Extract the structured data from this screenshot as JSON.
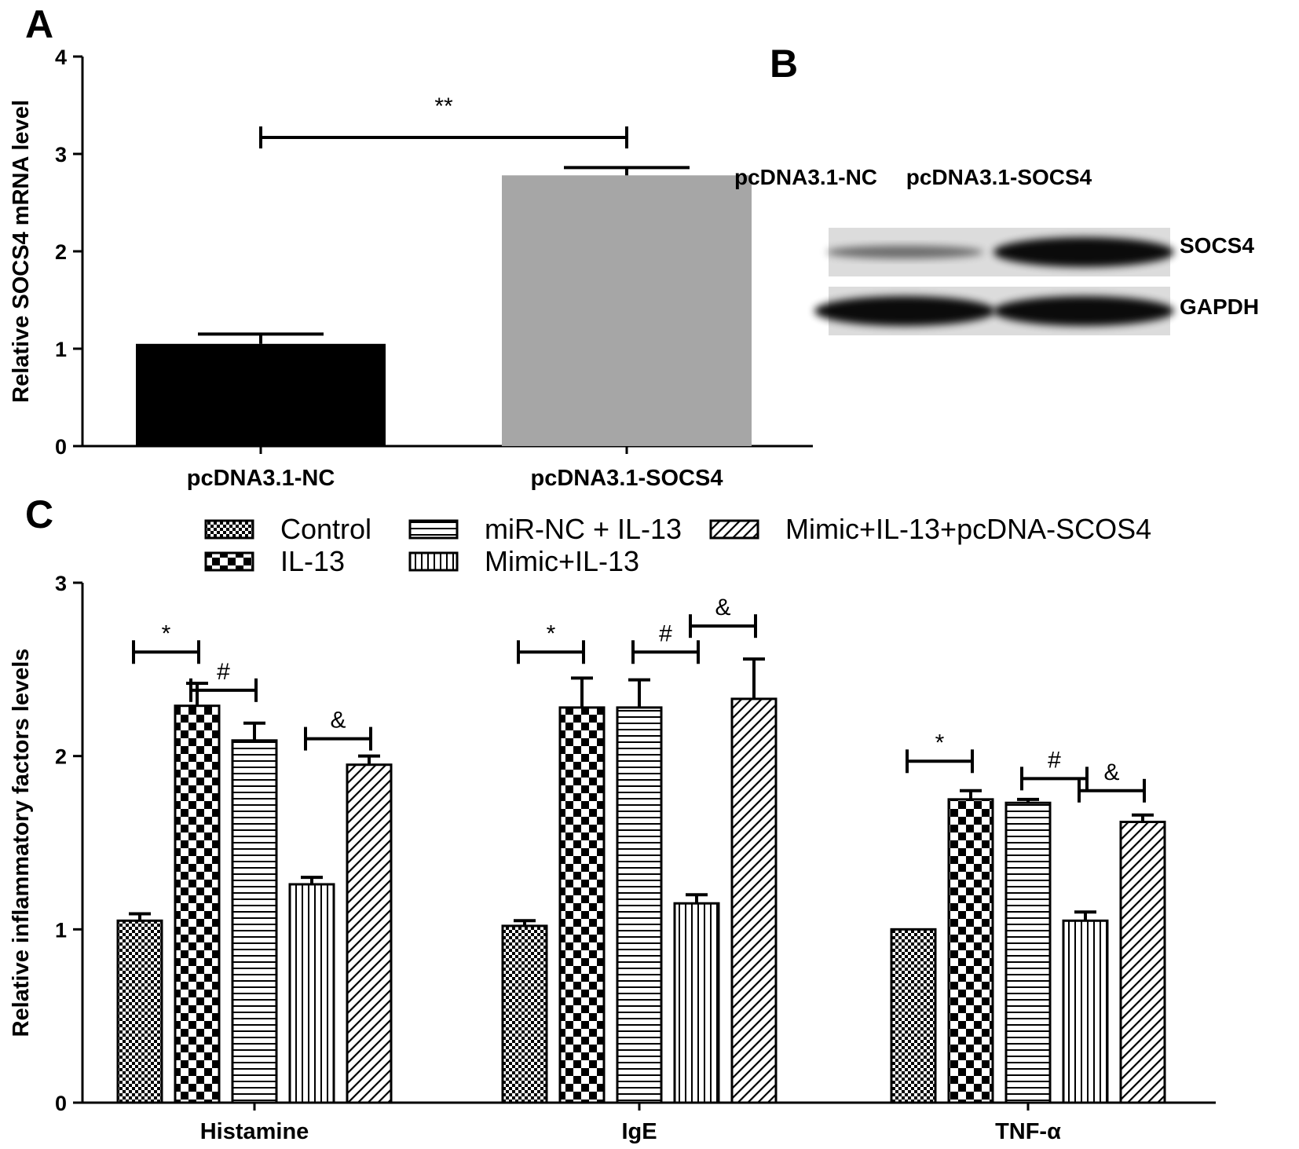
{
  "panels": {
    "a": "A",
    "b": "B",
    "c": "C"
  },
  "chart_data": [
    {
      "panel": "A",
      "type": "bar",
      "ylabel": "Relative SOCS4 mRNA level",
      "xlabel": "",
      "ylim": [
        0,
        4
      ],
      "yticks": [
        0,
        1,
        2,
        3,
        4
      ],
      "categories": [
        "pcDNA3.1-NC",
        "pcDNA3.1-SOCS4"
      ],
      "values": [
        1.05,
        2.78
      ],
      "errors": [
        0.1,
        0.08
      ],
      "colors": [
        "#000000",
        "#a6a6a6"
      ],
      "significance": [
        {
          "from": 0,
          "to": 1,
          "label": "**"
        }
      ]
    },
    {
      "panel": "C",
      "type": "bar",
      "ylabel": "Relative inflammatory factors levels",
      "xlabel": "",
      "ylim": [
        0,
        3
      ],
      "yticks": [
        0,
        1,
        2,
        3
      ],
      "categories": [
        "Histamine",
        "IgE",
        "TNF-α"
      ],
      "series": [
        {
          "name": "Control",
          "pattern": "fine-check",
          "values": [
            1.05,
            1.02,
            1.0
          ],
          "errors": [
            0.04,
            0.03,
            0.0
          ]
        },
        {
          "name": "IL-13",
          "pattern": "checker",
          "values": [
            2.29,
            2.28,
            1.75
          ],
          "errors": [
            0.13,
            0.17,
            0.05
          ]
        },
        {
          "name": "miR-NC + IL-13",
          "pattern": "horizontal",
          "values": [
            2.09,
            2.28,
            1.73
          ],
          "errors": [
            0.1,
            0.16,
            0.02
          ]
        },
        {
          "name": "Mimic+IL-13",
          "pattern": "vertical",
          "values": [
            1.26,
            1.15,
            1.05
          ],
          "errors": [
            0.04,
            0.05,
            0.05
          ]
        },
        {
          "name": "Mimic+IL-13+pcDNA-SCOS4",
          "pattern": "diagonal",
          "values": [
            1.95,
            2.33,
            1.62
          ],
          "errors": [
            0.05,
            0.23,
            0.04
          ]
        }
      ],
      "significance": [
        {
          "group": 0,
          "from": 0,
          "to": 1,
          "label": "*",
          "y": 2.6
        },
        {
          "group": 0,
          "from": 1,
          "to": 2,
          "label": "#",
          "y": 2.38
        },
        {
          "group": 0,
          "from": 3,
          "to": 4,
          "label": "&",
          "y": 2.1
        },
        {
          "group": 1,
          "from": 0,
          "to": 1,
          "label": "*",
          "y": 2.6
        },
        {
          "group": 1,
          "from": 2,
          "to": 3,
          "label": "#",
          "y": 2.6
        },
        {
          "group": 1,
          "from": 3,
          "to": 4,
          "label": "&",
          "y": 2.75
        },
        {
          "group": 2,
          "from": 0,
          "to": 1,
          "label": "*",
          "y": 1.97
        },
        {
          "group": 2,
          "from": 2,
          "to": 3,
          "label": "#",
          "y": 1.87
        },
        {
          "group": 2,
          "from": 3,
          "to": 4,
          "label": "&",
          "y": 1.8
        }
      ],
      "legend": "top"
    }
  ],
  "western_blot": {
    "lanes": [
      "pcDNA3.1-NC",
      "pcDNA3.1-SOCS4"
    ],
    "rows": [
      {
        "protein": "SOCS4",
        "intensities": [
          0.25,
          1.0
        ]
      },
      {
        "protein": "GAPDH",
        "intensities": [
          1.0,
          1.0
        ]
      }
    ]
  }
}
